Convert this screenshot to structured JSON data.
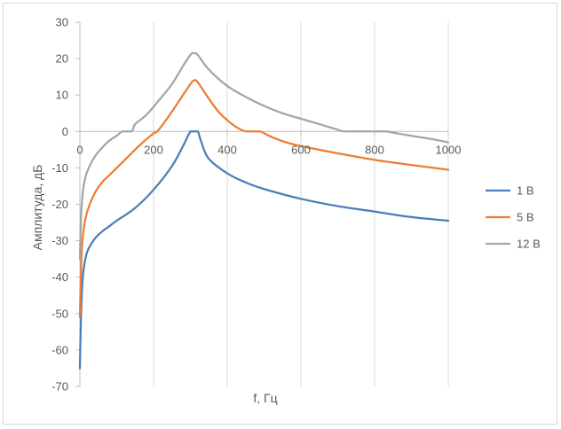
{
  "chart_data": {
    "type": "line",
    "title": "",
    "xlabel": "f, Гц",
    "ylabel": "Амплитуда, дБ",
    "xlim": [
      0,
      1000
    ],
    "ylim": [
      -70,
      30
    ],
    "x_ticks": [
      0,
      200,
      400,
      600,
      800,
      1000
    ],
    "y_ticks": [
      30,
      20,
      10,
      0,
      -10,
      -20,
      -30,
      -40,
      -50,
      -60,
      -70
    ],
    "x_tick_labels": [
      "0",
      "200",
      "400",
      "600",
      "800",
      "1000"
    ],
    "y_tick_labels": [
      "30",
      "20",
      "10",
      "0",
      "-10",
      "-20",
      "-30",
      "-40",
      "-50",
      "-60",
      "-70"
    ],
    "grid": "vertical",
    "legend": "right",
    "series": [
      {
        "name": "1 В",
        "color": "#4a7ebb",
        "x": [
          0,
          2,
          5,
          10,
          20,
          40,
          60,
          80,
          100,
          150,
          200,
          250,
          280,
          300,
          310,
          320,
          330,
          350,
          400,
          450,
          500,
          600,
          700,
          800,
          900,
          1000
        ],
        "y": [
          -65,
          -55,
          -45,
          -38,
          -33,
          -29.5,
          -27.5,
          -26,
          -24.5,
          -21,
          -16,
          -9.5,
          -4,
          0,
          0,
          0,
          -3,
          -7.5,
          -11.5,
          -14,
          -15.8,
          -18.5,
          -20.5,
          -22,
          -23.5,
          -24.5
        ]
      },
      {
        "name": "5 В",
        "color": "#ed7d31",
        "x": [
          0,
          2,
          5,
          10,
          20,
          40,
          60,
          80,
          100,
          130,
          160,
          200,
          210,
          240,
          270,
          300,
          310,
          320,
          350,
          380,
          420,
          450,
          470,
          490,
          520,
          560,
          600,
          700,
          800,
          900,
          1000
        ],
        "y": [
          -51,
          -42,
          -33,
          -27,
          -22,
          -17,
          -14,
          -12,
          -10,
          -7,
          -4,
          -0.5,
          0,
          4,
          8.5,
          13,
          14,
          13.5,
          9,
          5,
          1.5,
          0,
          0,
          0,
          -1.5,
          -3,
          -4,
          -6,
          -7.8,
          -9.2,
          -10.5
        ]
      },
      {
        "name": "12 В",
        "color": "#a5a5a5",
        "x": [
          0,
          2,
          5,
          10,
          20,
          40,
          60,
          80,
          100,
          115,
          140,
          150,
          180,
          210,
          250,
          280,
          300,
          310,
          320,
          350,
          400,
          450,
          500,
          550,
          600,
          650,
          700,
          720,
          800,
          830,
          860,
          900,
          950,
          1000
        ],
        "y": [
          -35,
          -27,
          -20,
          -15,
          -11,
          -7,
          -4.5,
          -2.5,
          -1.2,
          0,
          0,
          2,
          4.5,
          8,
          13,
          18,
          21,
          21.5,
          21,
          17,
          12.5,
          9.5,
          7,
          5,
          3.5,
          2,
          0.5,
          0,
          0,
          0,
          -0.5,
          -1.2,
          -2,
          -3
        ]
      }
    ]
  }
}
